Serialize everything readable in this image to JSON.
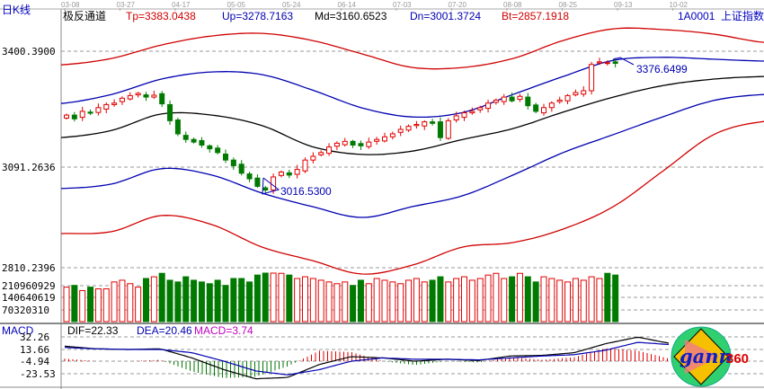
{
  "header": {
    "period": "日K线",
    "indicator": "极反通道",
    "tp": "Tp=3383.0438",
    "up": "Up=3278.7163",
    "md": "Md=3160.6523",
    "dn": "Dn=3001.3724",
    "bt": "Bt=2857.1918",
    "symbol": "1A0001",
    "name": "上证指数"
  },
  "logo_text": "gann360",
  "colors": {
    "up": "#e00000",
    "down": "#007a00",
    "tp": "#d00000",
    "band": "#0000b0",
    "md": "#000000",
    "macd": "#c000c0"
  },
  "chart_data": [
    {
      "type": "candlestick",
      "title": "",
      "x_ticks": [
        "03-08",
        "03-27",
        "04-17",
        "05-05",
        "05-24",
        "06-14",
        "07-03",
        "07-20",
        "08-08",
        "08-25",
        "09-13",
        "10-02"
      ],
      "y_ticks": [
        "3400.3900",
        "3091.2636",
        "2810.2396"
      ],
      "ylim": [
        2810.2396,
        3400.39
      ],
      "closes": [
        3230,
        3220,
        3240,
        3235,
        3250,
        3258,
        3262,
        3275,
        3282,
        3288,
        3278,
        3283,
        3260,
        3215,
        3180,
        3165,
        3158,
        3150,
        3140,
        3130,
        3110,
        3095,
        3075,
        3060,
        3040,
        3030,
        3065,
        3078,
        3070,
        3085,
        3110,
        3120,
        3130,
        3145,
        3155,
        3160,
        3150,
        3148,
        3158,
        3165,
        3172,
        3180,
        3192,
        3200,
        3205,
        3212,
        3208,
        3170,
        3215,
        3228,
        3236,
        3240,
        3250,
        3262,
        3270,
        3278,
        3268,
        3280,
        3255,
        3240,
        3250,
        3262,
        3270,
        3282,
        3290,
        3295,
        3365,
        3372,
        3370,
        3368
      ],
      "bands": {
        "Tp": [
          3364,
          3381,
          3417,
          3441,
          3448,
          3429,
          3393,
          3357,
          3357,
          3381,
          3429,
          3460,
          3458,
          3446,
          3424
        ],
        "Up": [
          3261,
          3285,
          3326,
          3345,
          3338,
          3297,
          3249,
          3225,
          3237,
          3285,
          3333,
          3376,
          3384,
          3379,
          3374
        ],
        "Md": [
          3170,
          3189,
          3233,
          3230,
          3202,
          3146,
          3125,
          3134,
          3165,
          3194,
          3238,
          3278,
          3309,
          3326,
          3333
        ],
        "Dn": [
          3034,
          3046,
          3087,
          3070,
          3022,
          2986,
          2957,
          2986,
          3015,
          3070,
          3130,
          3178,
          3226,
          3269,
          3285
        ],
        "Bt": [
          2914,
          2919,
          2962,
          2938,
          2878,
          2842,
          2806,
          2830,
          2878,
          2890,
          2926,
          2986,
          3082,
          3178,
          3213
        ]
      },
      "annotations": [
        {
          "text": "3376.6499",
          "price": 3376.6499
        },
        {
          "text": "3016.5300",
          "price": 3016.53
        }
      ]
    },
    {
      "type": "bar",
      "y_ticks": [
        "210960929",
        "140640619",
        "70320310"
      ],
      "ylim": [
        0,
        281281239
      ],
      "values": [
        200000000.0,
        210000000.0,
        180000000.0,
        200000000.0,
        190000000.0,
        190000000.0,
        230000000.0,
        240000000.0,
        220000000.0,
        200000000.0,
        250000000.0,
        260000000.0,
        280000000.0,
        240000000.0,
        230000000.0,
        260000000.0,
        240000000.0,
        230000000.0,
        220000000.0,
        240000000.0,
        210000000.0,
        250000000.0,
        250000000.0,
        230000000.0,
        270000000.0,
        300000000.0,
        290000000.0,
        280000000.0,
        270000000.0,
        250000000.0,
        260000000.0,
        250000000.0,
        240000000.0,
        230000000.0,
        220000000.0,
        230000000.0,
        210000000.0,
        240000000.0,
        220000000.0,
        250000000.0,
        240000000.0,
        230000000.0,
        220000000.0,
        240000000.0,
        250000000.0,
        230000000.0,
        240000000.0,
        260000000.0,
        230000000.0,
        250000000.0,
        260000000.0,
        240000000.0,
        250000000.0,
        270000000.0,
        280000000.0,
        250000000.0,
        260000000.0,
        280000000.0,
        260000000.0,
        230000000.0,
        260000000.0,
        250000000.0,
        240000000.0,
        230000000.0,
        250000000.0,
        240000000.0,
        260000000.0,
        250000000.0,
        280000000.0,
        270000000.0
      ]
    },
    {
      "type": "line",
      "title": "MACD",
      "dif_label": "DIF=22.33",
      "dea_label": "DEA=20.46",
      "macd_label": "MACD=3.74",
      "y_ticks": [
        "32.26",
        "13.66",
        "-4.94",
        "-23.53"
      ],
      "ylim": [
        -40,
        38
      ],
      "series": [
        {
          "name": "DIF",
          "values": [
            18,
            14,
            13,
            14,
            0,
            -18,
            -32,
            -30,
            -10,
            2,
            0,
            -5,
            -2,
            -4,
            3,
            4,
            8,
            22,
            32,
            22.33
          ]
        },
        {
          "name": "DEA",
          "values": [
            16,
            14,
            13,
            13,
            8,
            -5,
            -20,
            -26,
            -18,
            -5,
            0,
            -2,
            -2,
            -3,
            0,
            3,
            5,
            12,
            24,
            20.46
          ]
        }
      ]
    }
  ]
}
